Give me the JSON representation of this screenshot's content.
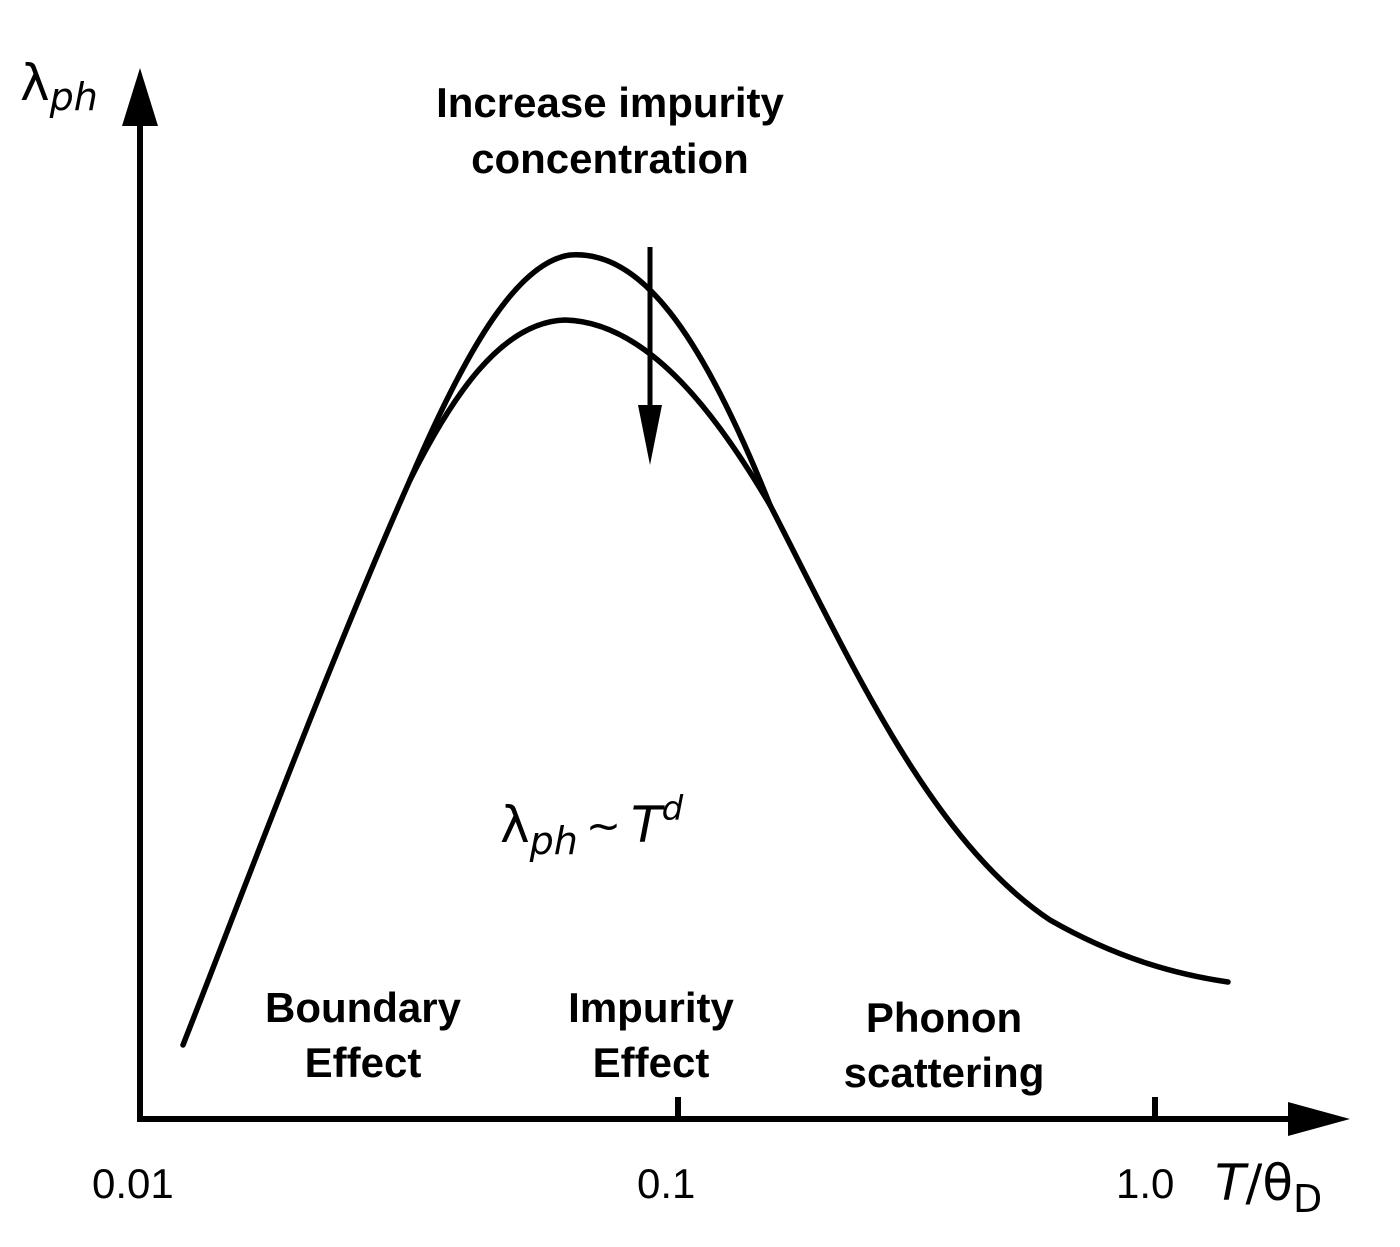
{
  "y_axis": {
    "symbol": "λ",
    "subscript": "ph"
  },
  "x_axis": {
    "ticks": [
      "0.01",
      "0.1",
      "1.0"
    ],
    "variable": "T",
    "slash": "/",
    "theta": "θ",
    "theta_subscript": "D"
  },
  "annotation": {
    "line1": "Increase impurity",
    "line2": "concentration"
  },
  "formula": {
    "symbol": "λ",
    "subscript": "ph",
    "tilde": "~",
    "variable": "T",
    "exponent": "d"
  },
  "regions": [
    {
      "line1": "Boundary",
      "line2": "Effect"
    },
    {
      "line1": "Impurity",
      "line2": "Effect"
    },
    {
      "line1": "Phonon",
      "line2": "scattering"
    }
  ]
}
